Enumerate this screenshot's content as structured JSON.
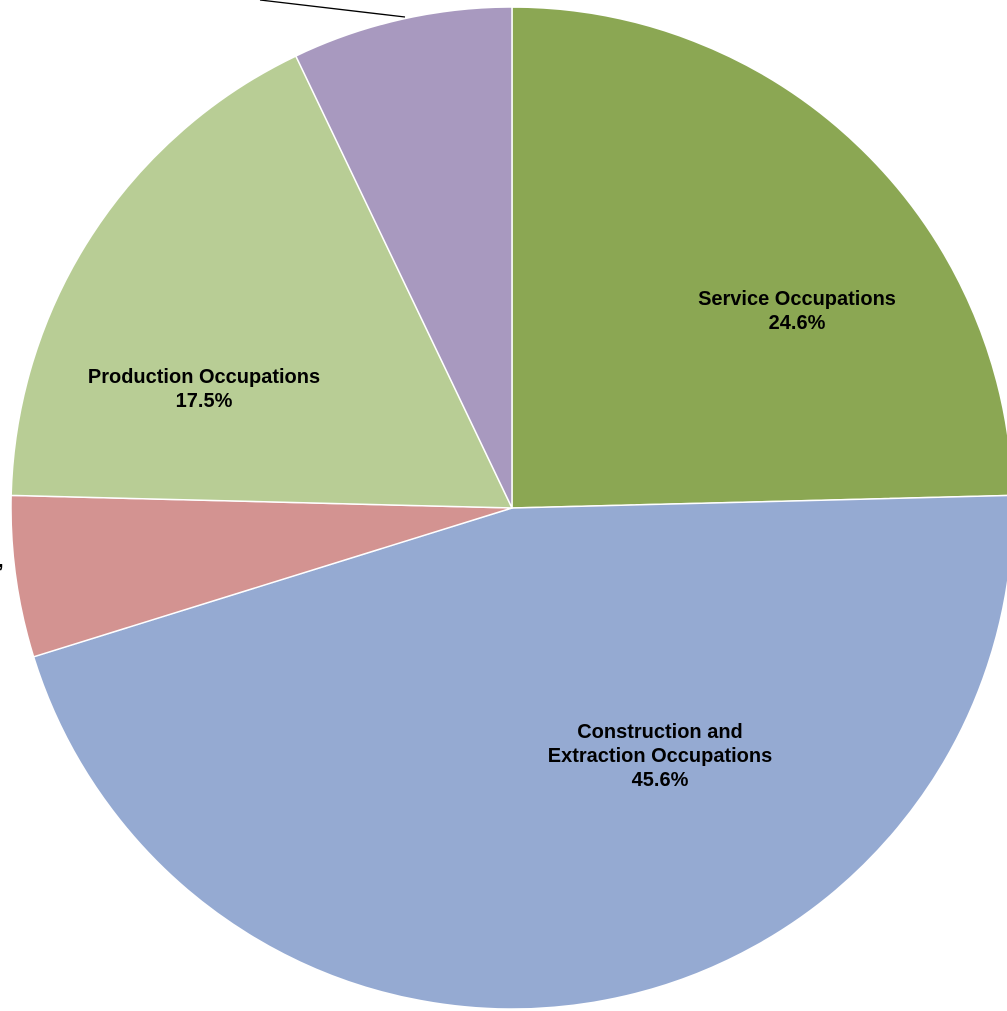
{
  "chart_data": {
    "type": "pie",
    "title": "",
    "slices": [
      {
        "label_lines": [
          "Service Occupations"
        ],
        "value": 24.6,
        "value_label": "24.6%",
        "color": "#8BA753"
      },
      {
        "label_lines": [
          "Construction and",
          "Extraction Occupations"
        ],
        "value": 45.6,
        "value_label": "45.6%",
        "color": "#95AAD2"
      },
      {
        "label_lines": [],
        "value": 5.2,
        "value_label": "",
        "color": "#D39391"
      },
      {
        "label_lines": [
          "Production Occupations"
        ],
        "value": 17.5,
        "value_label": "17.5%",
        "color": "#B8CD95"
      },
      {
        "label_lines": [],
        "value": 7.1,
        "value_label": "",
        "color": "#A899BF"
      }
    ],
    "truncated_label_fragment": ",",
    "start_angle_deg": 0,
    "direction": "clockwise",
    "slice_border_color": "#FFFFFF",
    "leader_line_color": "#000000",
    "legend": "none"
  }
}
